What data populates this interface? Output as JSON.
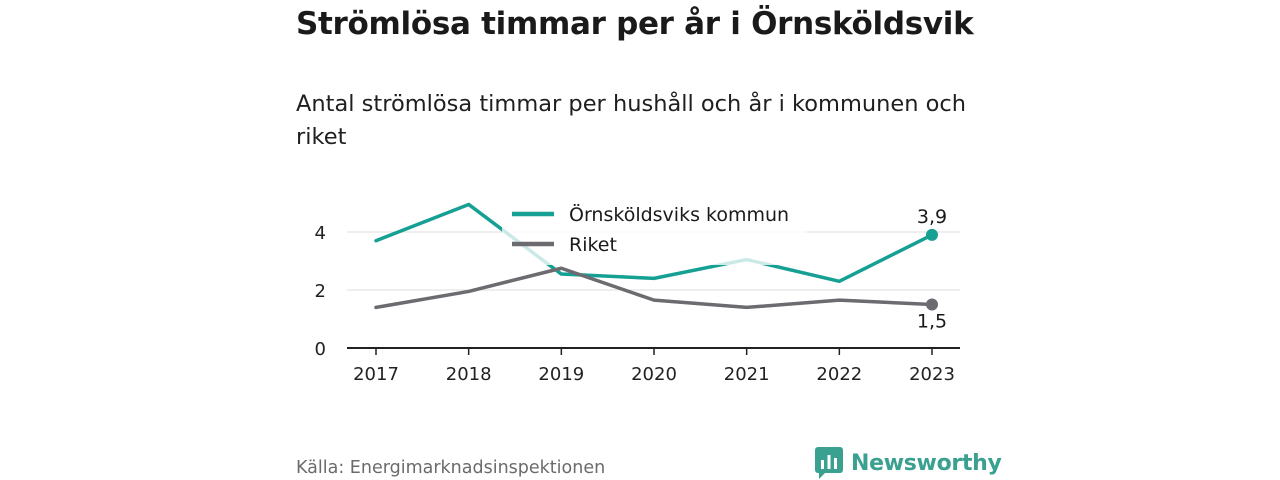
{
  "title": "Strömlösa timmar per år i Örnsköldsvik",
  "subtitle": "Antal strömlösa timmar per hushåll och år i kommunen och riket",
  "source": "Källa: Energimarknadsinspektionen",
  "brand": {
    "name": "Newsworthy",
    "icon": "newsworthy-logo-icon"
  },
  "colors": {
    "kommun": "#15a093",
    "riket": "#6b6b70",
    "grid": "#dddddd",
    "axis": "#222222"
  },
  "chart_data": {
    "type": "line",
    "title": "Strömlösa timmar per år i Örnsköldsvik",
    "subtitle": "Antal strömlösa timmar per hushåll och år i kommunen och riket",
    "x": [
      "2017",
      "2018",
      "2019",
      "2020",
      "2021",
      "2022",
      "2023"
    ],
    "series": [
      {
        "name": "Örnsköldsviks kommun",
        "values": [
          3.7,
          4.95,
          2.55,
          2.4,
          3.05,
          2.3,
          3.9
        ],
        "end_label": "3,9"
      },
      {
        "name": "Riket",
        "values": [
          1.4,
          1.95,
          2.75,
          1.65,
          1.4,
          1.65,
          1.5
        ],
        "end_label": "1,5"
      }
    ],
    "y_ticks": [
      "0",
      "2",
      "4"
    ],
    "ylim": [
      0,
      5
    ],
    "grid": true,
    "legend_position": "top-center"
  }
}
